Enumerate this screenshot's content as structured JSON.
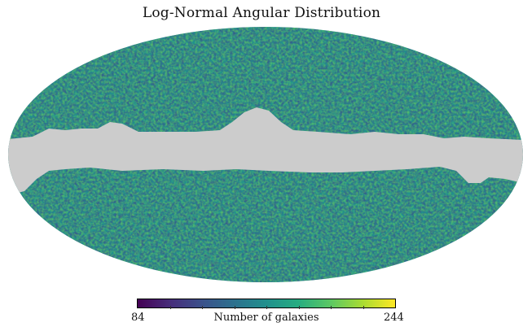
{
  "figure": {
    "title": "Log-Normal Angular Distribution"
  },
  "colorbar": {
    "label": "Number of galaxies",
    "min": "84",
    "max": "244",
    "colormap": "viridis",
    "stops": [
      "#440154",
      "#472c7a",
      "#3b518b",
      "#2c718e",
      "#21908d",
      "#27ad81",
      "#5cc863",
      "#aadc32",
      "#fde725"
    ]
  },
  "map": {
    "projection": "mollweide",
    "mask_color": "#cccccc",
    "dominant_color": "#21908d"
  }
}
